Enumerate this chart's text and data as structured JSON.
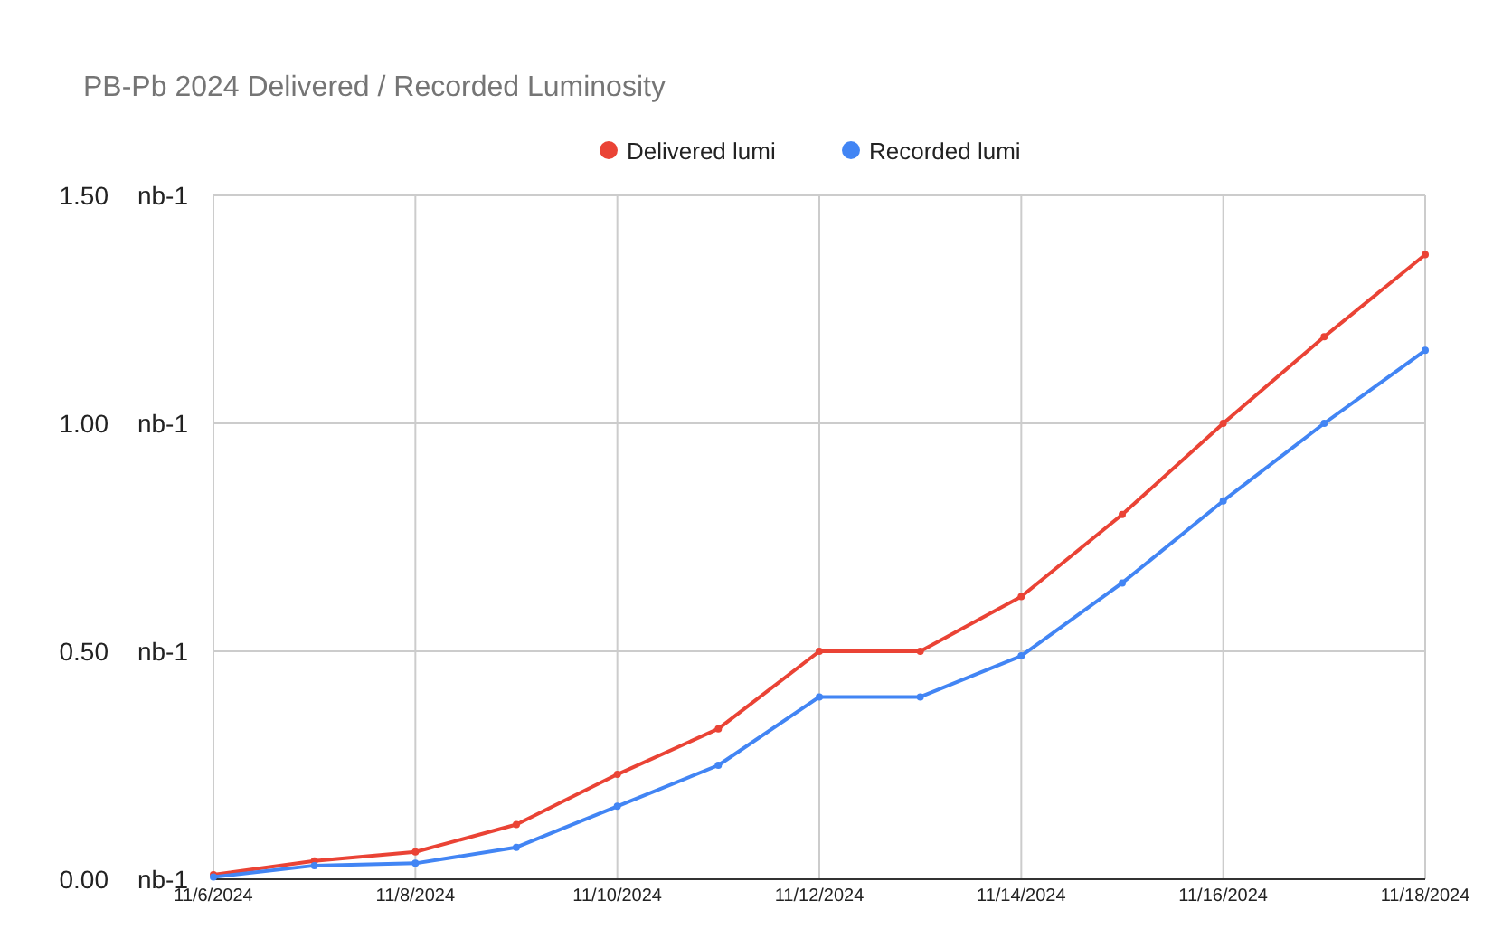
{
  "chart_data": {
    "type": "line",
    "title": "PB-Pb 2024 Delivered / Recorded Luminosity",
    "x": [
      "2024-11-06",
      "2024-11-07",
      "2024-11-08",
      "2024-11-09",
      "2024-11-10",
      "2024-11-11",
      "2024-11-12",
      "2024-11-13",
      "2024-11-14",
      "2024-11-15",
      "2024-11-16",
      "2024-11-17",
      "2024-11-18"
    ],
    "series": [
      {
        "name": "Delivered lumi",
        "color": "#ea4335",
        "values": [
          0.01,
          0.04,
          0.06,
          0.12,
          0.23,
          0.33,
          0.5,
          0.5,
          0.62,
          0.8,
          1.0,
          1.19,
          1.37
        ]
      },
      {
        "name": "Recorded lumi",
        "color": "#4285f4",
        "values": [
          0.005,
          0.03,
          0.035,
          0.07,
          0.16,
          0.25,
          0.4,
          0.4,
          0.49,
          0.65,
          0.83,
          1.0,
          1.16
        ]
      }
    ],
    "xlim": [
      "2024-11-06",
      "2024-11-18"
    ],
    "xticks": [
      {
        "value": "2024-11-06",
        "label": "11/6/2024"
      },
      {
        "value": "2024-11-08",
        "label": "11/8/2024"
      },
      {
        "value": "2024-11-10",
        "label": "11/10/2024"
      },
      {
        "value": "2024-11-12",
        "label": "11/12/2024"
      },
      {
        "value": "2024-11-14",
        "label": "11/14/2024"
      },
      {
        "value": "2024-11-16",
        "label": "11/16/2024"
      },
      {
        "value": "2024-11-18",
        "label": "11/18/2024"
      }
    ],
    "ylim": [
      0,
      1.5
    ],
    "yticks": [
      {
        "value": 0,
        "label": "0.00"
      },
      {
        "value": 0.5,
        "label": "0.50"
      },
      {
        "value": 1.0,
        "label": "1.00"
      },
      {
        "value": 1.5,
        "label": "1.50"
      }
    ],
    "ylabel": "nb-1",
    "grid": true,
    "legend": "top",
    "marker": "circle",
    "line_style": "solid"
  }
}
